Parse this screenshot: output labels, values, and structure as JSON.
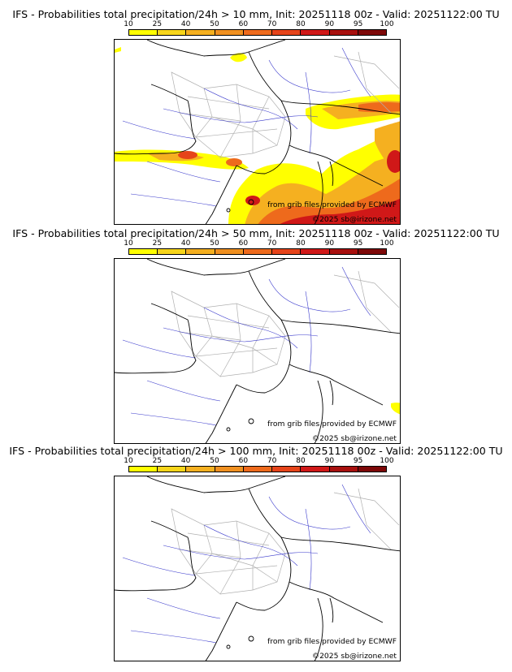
{
  "legend_levels": [
    "10",
    "25",
    "40",
    "50",
    "60",
    "70",
    "80",
    "90",
    "95",
    "100"
  ],
  "legend_colors": [
    "#ffff00",
    "#f7d51a",
    "#f5b020",
    "#f09020",
    "#ee6a1c",
    "#e6441a",
    "#d01818",
    "#a8100e",
    "#7d0808"
  ],
  "credits": {
    "source": "from grib files provided by ECMWF",
    "copyright": "©2025 sb@irizone.net"
  },
  "panels": [
    {
      "title": "IFS - Probabilities total precipitation/24h > 10 mm, Init: 20251118 00z - Valid: 20251122:00 TU",
      "threshold_mm": 10
    },
    {
      "title": "IFS - Probabilities total precipitation/24h > 50 mm, Init: 20251118 00z - Valid: 20251122:00 TU",
      "threshold_mm": 50
    },
    {
      "title": "IFS - Probabilities total precipitation/24h > 100 mm, Init: 20251118 00z - Valid: 20251122:00 TU",
      "threshold_mm": 100
    }
  ]
}
